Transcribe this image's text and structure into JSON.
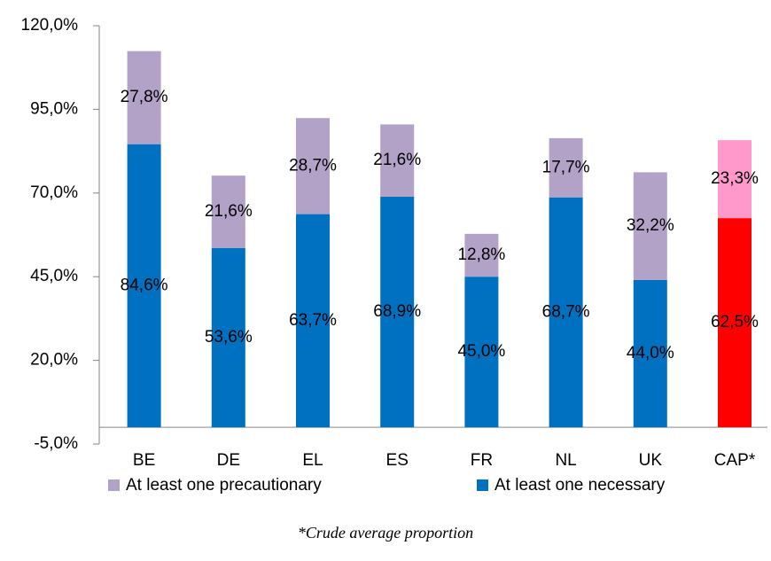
{
  "chart_data": {
    "type": "stacked_bar",
    "categories": [
      "BE",
      "DE",
      "EL",
      "ES",
      "FR",
      "NL",
      "UK",
      "CAP*"
    ],
    "series": [
      {
        "name": "At least one necessary",
        "color": "#0070c0",
        "colors": [
          "#0070c0",
          "#0070c0",
          "#0070c0",
          "#0070c0",
          "#0070c0",
          "#0070c0",
          "#0070c0",
          "#ff0000"
        ],
        "values": [
          84.6,
          53.6,
          63.7,
          68.9,
          45.0,
          68.7,
          44.0,
          62.5
        ],
        "value_labels": [
          "84,6%",
          "53,6%",
          "63,7%",
          "68,9%",
          "45,0%",
          "68,7%",
          "44,0%",
          "62,5%"
        ]
      },
      {
        "name": "At least one precautionary",
        "color": "#b2a2c7",
        "colors": [
          "#b2a2c7",
          "#b2a2c7",
          "#b2a2c7",
          "#b2a2c7",
          "#b2a2c7",
          "#b2a2c7",
          "#b2a2c7",
          "#ff99cc"
        ],
        "values": [
          27.8,
          21.6,
          28.7,
          21.6,
          12.8,
          17.7,
          32.2,
          23.3
        ],
        "value_labels": [
          "27,8%",
          "21,6%",
          "28,7%",
          "21,6%",
          "12,8%",
          "17,7%",
          "32,2%",
          "23,3%"
        ]
      }
    ],
    "ylim": [
      -5,
      120
    ],
    "yticks": [
      {
        "value": -5,
        "label": "-5,0%"
      },
      {
        "value": 20,
        "label": "20,0%"
      },
      {
        "value": 45,
        "label": "45,0%"
      },
      {
        "value": 70,
        "label": "70,0%"
      },
      {
        "value": 95,
        "label": "95,0%"
      },
      {
        "value": 120,
        "label": "120,0%"
      }
    ],
    "grid": false,
    "legend": "bottom",
    "footnote": "*Crude average proportion"
  }
}
